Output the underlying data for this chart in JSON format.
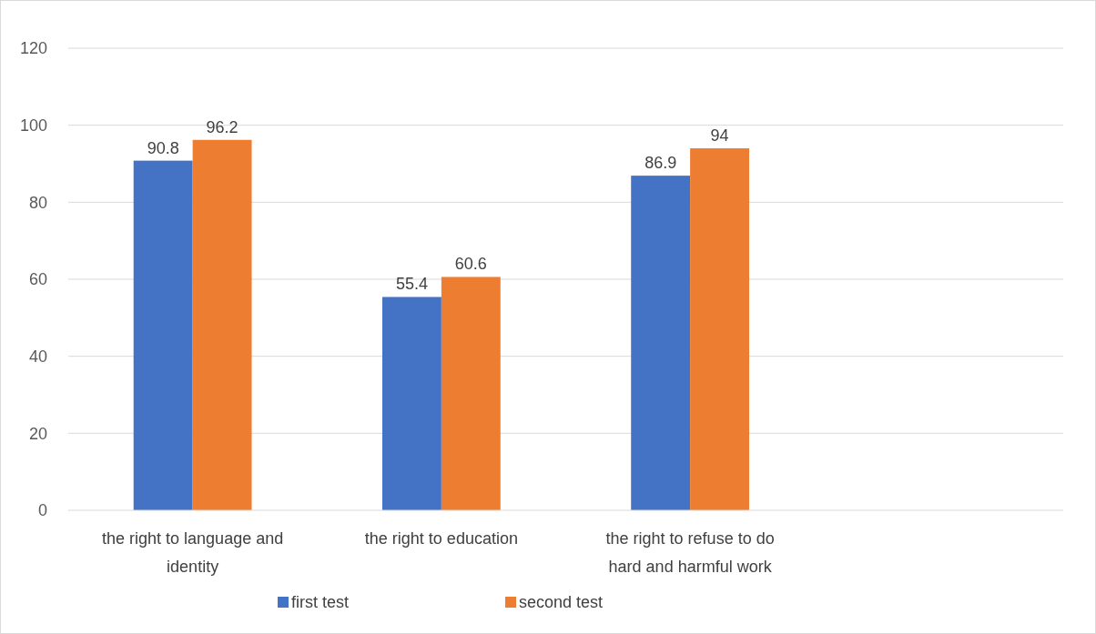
{
  "chart_data": {
    "type": "bar",
    "categories": [
      "the right to language and identity",
      "the right to education",
      "the right to refuse to do hard and harmful work",
      null
    ],
    "series": [
      {
        "name": "first test",
        "color": "#4472c4",
        "values": [
          90.8,
          55.4,
          86.9,
          null
        ]
      },
      {
        "name": "second test",
        "color": "#ed7d31",
        "values": [
          96.2,
          60.6,
          94,
          null
        ]
      }
    ],
    "ylim": [
      0,
      120
    ],
    "yticks": [
      0,
      20,
      40,
      60,
      80,
      100,
      120
    ],
    "grid": "y",
    "legend": "bottom",
    "data_labels": true
  }
}
